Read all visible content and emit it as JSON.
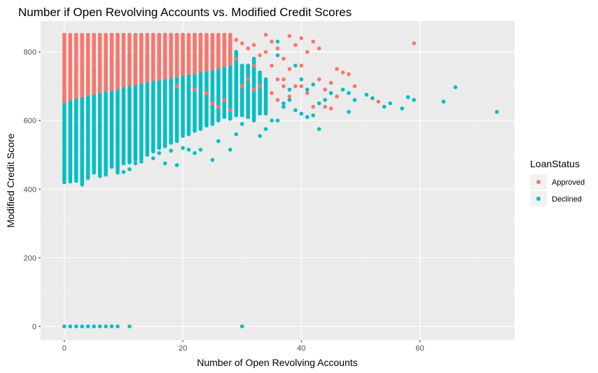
{
  "chart_data": {
    "type": "scatter",
    "title": "Number if Open Revolving Accounts vs. Modified Credit Scores",
    "xlabel": "Number of Open Revolving Accounts",
    "ylabel": "Modified Credit Score",
    "xlim": [
      -4,
      76
    ],
    "ylim": [
      -40,
      890
    ],
    "x_ticks": [
      0,
      20,
      40,
      60
    ],
    "y_ticks": [
      0,
      200,
      400,
      600,
      800
    ],
    "grid": true,
    "legend": {
      "title": "LoanStatus",
      "placement": "right",
      "entries": [
        {
          "label": "Approved",
          "color": "#F8766D"
        },
        {
          "label": "Declined",
          "color": "#00BFC4"
        }
      ]
    },
    "series": [
      {
        "name": "Declined",
        "color": "#00BFC4",
        "columns": [
          {
            "x": 0,
            "ymin": 420,
            "ymax": 700
          },
          {
            "x": 1,
            "ymin": 422,
            "ymax": 720
          },
          {
            "x": 2,
            "ymin": 424,
            "ymax": 730
          },
          {
            "x": 3,
            "ymin": 413,
            "ymax": 740
          },
          {
            "x": 4,
            "ymin": 432,
            "ymax": 745
          },
          {
            "x": 5,
            "ymin": 448,
            "ymax": 750
          },
          {
            "x": 6,
            "ymin": 445,
            "ymax": 760
          },
          {
            "x": 7,
            "ymin": 442,
            "ymax": 765
          },
          {
            "x": 8,
            "ymin": 465,
            "ymax": 770
          },
          {
            "x": 9,
            "ymin": 448,
            "ymax": 775
          },
          {
            "x": 10,
            "ymin": 475,
            "ymax": 780
          },
          {
            "x": 11,
            "ymin": 478,
            "ymax": 790
          },
          {
            "x": 12,
            "ymin": 485,
            "ymax": 795
          },
          {
            "x": 13,
            "ymin": 488,
            "ymax": 800
          },
          {
            "x": 14,
            "ymin": 500,
            "ymax": 805
          },
          {
            "x": 15,
            "ymin": 510,
            "ymax": 810
          },
          {
            "x": 16,
            "ymin": 520,
            "ymax": 815
          },
          {
            "x": 17,
            "ymin": 525,
            "ymax": 815
          },
          {
            "x": 18,
            "ymin": 535,
            "ymax": 820
          },
          {
            "x": 19,
            "ymin": 540,
            "ymax": 820
          },
          {
            "x": 20,
            "ymin": 555,
            "ymax": 825
          },
          {
            "x": 21,
            "ymin": 560,
            "ymax": 825
          },
          {
            "x": 22,
            "ymin": 570,
            "ymax": 830
          },
          {
            "x": 23,
            "ymin": 575,
            "ymax": 820
          },
          {
            "x": 24,
            "ymin": 585,
            "ymax": 830
          },
          {
            "x": 25,
            "ymin": 590,
            "ymax": 830
          },
          {
            "x": 26,
            "ymin": 600,
            "ymax": 825
          },
          {
            "x": 27,
            "ymin": 610,
            "ymax": 835
          },
          {
            "x": 28,
            "ymin": 605,
            "ymax": 850
          },
          {
            "x": 29,
            "ymin": 615,
            "ymax": 800
          },
          {
            "x": 30,
            "ymin": 615,
            "ymax": 760
          },
          {
            "x": 31,
            "ymin": 610,
            "ymax": 760
          },
          {
            "x": 32,
            "ymin": 600,
            "ymax": 780
          },
          {
            "x": 33,
            "ymin": 620,
            "ymax": 740
          },
          {
            "x": 34,
            "ymin": 620,
            "ymax": 720
          }
        ],
        "points": [
          [
            1,
            440
          ],
          [
            2,
            430
          ],
          [
            4,
            455
          ],
          [
            6,
            438
          ],
          [
            9,
            470
          ],
          [
            10,
            450
          ],
          [
            11,
            458
          ],
          [
            12,
            475
          ],
          [
            13,
            480
          ],
          [
            15,
            490
          ],
          [
            16,
            505
          ],
          [
            17,
            475
          ],
          [
            18,
            512
          ],
          [
            19,
            470
          ],
          [
            20,
            520
          ],
          [
            21,
            515
          ],
          [
            22,
            505
          ],
          [
            23,
            515
          ],
          [
            25,
            485
          ],
          [
            26,
            540
          ],
          [
            28,
            515
          ],
          [
            29,
            560
          ],
          [
            30,
            590
          ],
          [
            31,
            610
          ],
          [
            33,
            555
          ],
          [
            34,
            575
          ],
          [
            35,
            600
          ],
          [
            36,
            600
          ],
          [
            37,
            640
          ],
          [
            38,
            660
          ],
          [
            36,
            830
          ],
          [
            37,
            650
          ],
          [
            38,
            690
          ],
          [
            39,
            630
          ],
          [
            40,
            620
          ],
          [
            41,
            610
          ],
          [
            42,
            615
          ],
          [
            43,
            575
          ],
          [
            43,
            650
          ],
          [
            44,
            660
          ],
          [
            45,
            680
          ],
          [
            46,
            670
          ],
          [
            47,
            690
          ],
          [
            48,
            625
          ],
          [
            48,
            680
          ],
          [
            49,
            660
          ],
          [
            51,
            675
          ],
          [
            52,
            665
          ],
          [
            54,
            640
          ],
          [
            55,
            650
          ],
          [
            57,
            635
          ],
          [
            58,
            668
          ],
          [
            59,
            660
          ],
          [
            64,
            655
          ],
          [
            66,
            697
          ],
          [
            73,
            625
          ],
          [
            36,
            790
          ],
          [
            39,
            760
          ],
          [
            40,
            720
          ],
          [
            41,
            690
          ],
          [
            42,
            705
          ],
          [
            0,
            0
          ],
          [
            1,
            0
          ],
          [
            2,
            0
          ],
          [
            3,
            0
          ],
          [
            4,
            0
          ],
          [
            5,
            0
          ],
          [
            6,
            0
          ],
          [
            7,
            0
          ],
          [
            8,
            0
          ],
          [
            9,
            0
          ],
          [
            11,
            0
          ],
          [
            30,
            0
          ]
        ]
      },
      {
        "name": "Approved",
        "color": "#F8766D",
        "columns": [
          {
            "x": 0,
            "ymin": 655,
            "ymax": 850
          },
          {
            "x": 1,
            "ymin": 662,
            "ymax": 850
          },
          {
            "x": 2,
            "ymin": 668,
            "ymax": 850
          },
          {
            "x": 3,
            "ymin": 672,
            "ymax": 850
          },
          {
            "x": 4,
            "ymin": 676,
            "ymax": 850
          },
          {
            "x": 5,
            "ymin": 680,
            "ymax": 850
          },
          {
            "x": 6,
            "ymin": 685,
            "ymax": 850
          },
          {
            "x": 7,
            "ymin": 688,
            "ymax": 850
          },
          {
            "x": 8,
            "ymin": 690,
            "ymax": 850
          },
          {
            "x": 9,
            "ymin": 695,
            "ymax": 850
          },
          {
            "x": 10,
            "ymin": 700,
            "ymax": 850
          },
          {
            "x": 11,
            "ymin": 705,
            "ymax": 850
          },
          {
            "x": 12,
            "ymin": 708,
            "ymax": 850
          },
          {
            "x": 13,
            "ymin": 712,
            "ymax": 850
          },
          {
            "x": 14,
            "ymin": 715,
            "ymax": 850
          },
          {
            "x": 15,
            "ymin": 720,
            "ymax": 850
          },
          {
            "x": 16,
            "ymin": 722,
            "ymax": 850
          },
          {
            "x": 17,
            "ymin": 725,
            "ymax": 850
          },
          {
            "x": 18,
            "ymin": 728,
            "ymax": 850
          },
          {
            "x": 19,
            "ymin": 730,
            "ymax": 850
          },
          {
            "x": 20,
            "ymin": 735,
            "ymax": 850
          },
          {
            "x": 21,
            "ymin": 738,
            "ymax": 850
          },
          {
            "x": 22,
            "ymin": 740,
            "ymax": 850
          },
          {
            "x": 23,
            "ymin": 745,
            "ymax": 850
          },
          {
            "x": 24,
            "ymin": 748,
            "ymax": 850
          },
          {
            "x": 25,
            "ymin": 752,
            "ymax": 850
          },
          {
            "x": 26,
            "ymin": 755,
            "ymax": 850
          },
          {
            "x": 27,
            "ymin": 760,
            "ymax": 850
          },
          {
            "x": 28,
            "ymin": 765,
            "ymax": 850
          }
        ],
        "points": [
          [
            19,
            700
          ],
          [
            22,
            690
          ],
          [
            24,
            680
          ],
          [
            25,
            650
          ],
          [
            26,
            640
          ],
          [
            27,
            660
          ],
          [
            28,
            630
          ],
          [
            29,
            835
          ],
          [
            29,
            780
          ],
          [
            30,
            825
          ],
          [
            30,
            700
          ],
          [
            31,
            810
          ],
          [
            31,
            720
          ],
          [
            32,
            820
          ],
          [
            32,
            760
          ],
          [
            33,
            790
          ],
          [
            33,
            700
          ],
          [
            34,
            850
          ],
          [
            34,
            800
          ],
          [
            35,
            830
          ],
          [
            35,
            760
          ],
          [
            36,
            810
          ],
          [
            36,
            720
          ],
          [
            37,
            780
          ],
          [
            37,
            700
          ],
          [
            38,
            846
          ],
          [
            38,
            750
          ],
          [
            39,
            820
          ],
          [
            39,
            700
          ],
          [
            40,
            840
          ],
          [
            40,
            760
          ],
          [
            41,
            680
          ],
          [
            41,
            800
          ],
          [
            42,
            830
          ],
          [
            42,
            640
          ],
          [
            43,
            810
          ],
          [
            43,
            720
          ],
          [
            44,
            690
          ],
          [
            45,
            710
          ],
          [
            46,
            750
          ],
          [
            46,
            670
          ],
          [
            47,
            740
          ],
          [
            48,
            735
          ],
          [
            49,
            700
          ],
          [
            53,
            655
          ],
          [
            59,
            825
          ],
          [
            32,
            690
          ],
          [
            35,
            680
          ],
          [
            38,
            670
          ],
          [
            44,
            640
          ],
          [
            45,
            635
          ],
          [
            36,
            660
          ],
          [
            37,
            720
          ],
          [
            40,
            700
          ]
        ]
      }
    ]
  }
}
